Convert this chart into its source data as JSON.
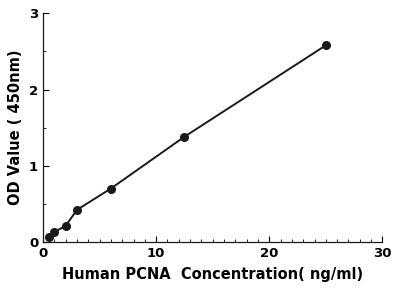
{
  "x_data": [
    0.5,
    1.0,
    2.0,
    3.0,
    6.0,
    12.5,
    25.0
  ],
  "y_data": [
    0.07,
    0.13,
    0.21,
    0.42,
    0.7,
    1.38,
    2.58
  ],
  "xlabel": "Human PCNA  Concentration( ng/ml)",
  "ylabel": "OD Value ( 450nm)",
  "xlim": [
    0,
    30
  ],
  "ylim": [
    0,
    3
  ],
  "xticks": [
    0,
    10,
    20,
    30
  ],
  "yticks": [
    0,
    1,
    2,
    3
  ],
  "line_color": "#1a1a1a",
  "marker_color": "#1a1a1a",
  "marker_size": 5.5,
  "line_width": 1.4,
  "background_color": "#ffffff",
  "xlabel_fontsize": 10.5,
  "ylabel_fontsize": 10.5,
  "tick_fontsize": 9.5,
  "x_minor_spacing": 1,
  "y_minor_spacing": 0.5
}
